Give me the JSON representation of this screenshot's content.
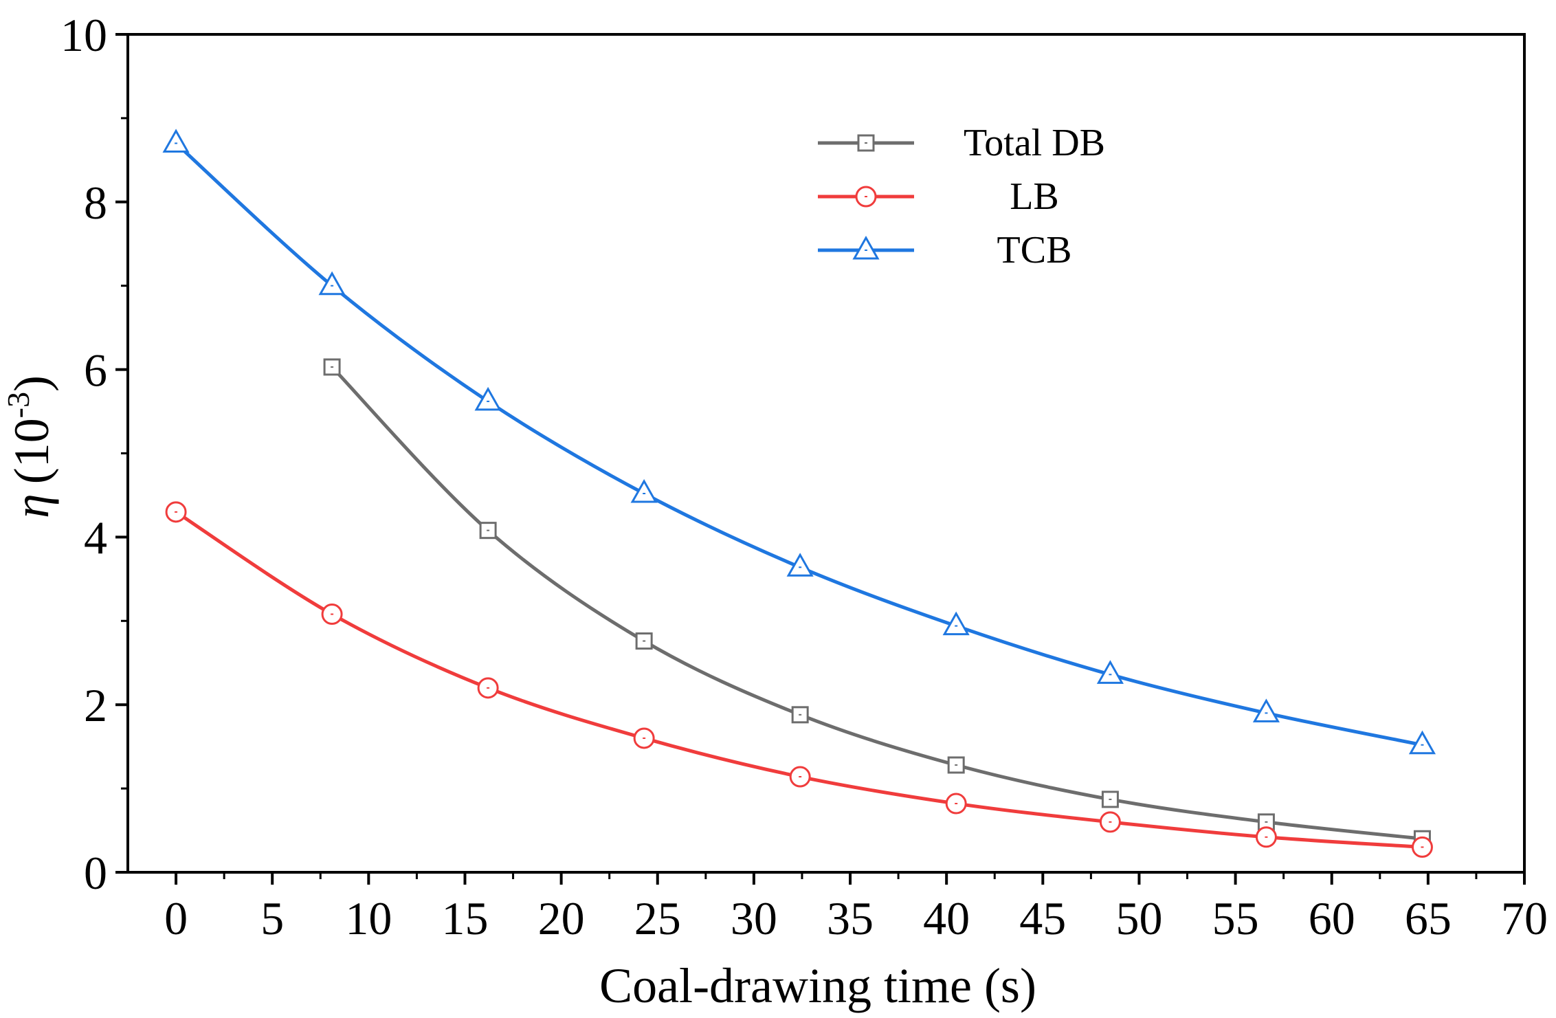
{
  "chart_data": {
    "type": "line",
    "title": "",
    "xlabel": "Coal-drawing time (s)",
    "ylabel_symbol": "η",
    "ylabel_unit_prefix": "(10",
    "ylabel_unit_exp": "-3",
    "ylabel_unit_suffix": ")",
    "xlim": [
      -2.5,
      70
    ],
    "ylim": [
      0,
      10
    ],
    "x_ticks": [
      0,
      5,
      10,
      15,
      20,
      25,
      30,
      35,
      40,
      45,
      50,
      55,
      60,
      65,
      70
    ],
    "x_tick_labels": [
      "0",
      "5",
      "10",
      "15",
      "20",
      "25",
      "30",
      "35",
      "40",
      "45",
      "50",
      "55",
      "60",
      "65",
      "70"
    ],
    "y_ticks": [
      0,
      2,
      4,
      6,
      8,
      10
    ],
    "y_tick_labels": [
      "0",
      "2",
      "4",
      "6",
      "8",
      "10"
    ],
    "grid": false,
    "legend_position": "top-right",
    "series": [
      {
        "name": "Total DB",
        "color": "#6d6d6d",
        "marker": "square",
        "x": [
          8.1,
          16.2,
          24.3,
          32.4,
          40.5,
          48.5,
          56.6,
          64.7
        ],
        "y": [
          6.03,
          4.08,
          2.76,
          1.88,
          1.28,
          0.87,
          0.6,
          0.4
        ]
      },
      {
        "name": "LB",
        "color": "#f03c3c",
        "marker": "circle",
        "x": [
          0,
          8.1,
          16.2,
          24.3,
          32.4,
          40.5,
          48.5,
          56.6,
          64.7
        ],
        "y": [
          4.3,
          3.08,
          2.2,
          1.6,
          1.14,
          0.82,
          0.6,
          0.42,
          0.3
        ]
      },
      {
        "name": "TCB",
        "color": "#1f77e0",
        "marker": "triangle",
        "x": [
          0,
          8.1,
          16.2,
          24.3,
          32.4,
          40.5,
          48.5,
          56.6,
          64.7
        ],
        "y": [
          8.7,
          7.0,
          5.62,
          4.52,
          3.64,
          2.94,
          2.36,
          1.9,
          1.52
        ]
      }
    ]
  }
}
